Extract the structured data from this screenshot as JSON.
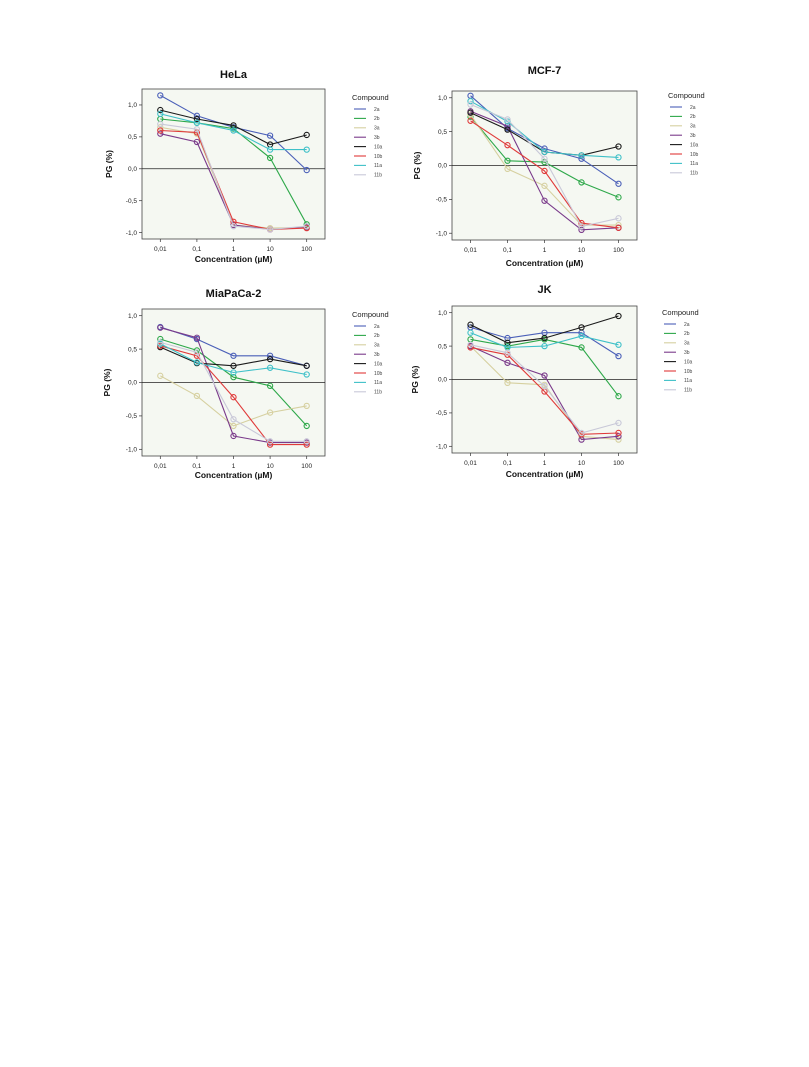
{
  "page": {
    "legend_title": "Compound"
  },
  "chart_data": [
    {
      "type": "line",
      "title": "HeLa",
      "xlabel": "Concentration (µM)",
      "ylabel": "PG (%)",
      "x_scale": "log",
      "categories": [
        "0,01",
        "0,1",
        "1",
        "10",
        "100"
      ],
      "y_ticks": [
        "1,0",
        "0,5",
        "0,0",
        "-0,5",
        "-1,0"
      ],
      "ylim": [
        -1.1,
        1.25
      ],
      "grid": false,
      "legend_position": "right",
      "series": [
        {
          "name": "2a",
          "color": "#4a5fb8",
          "values": [
            1.15,
            0.83,
            0.65,
            0.52,
            -0.02
          ]
        },
        {
          "name": "2b",
          "color": "#2ea84a",
          "values": [
            0.78,
            0.72,
            0.63,
            0.17,
            -0.87
          ]
        },
        {
          "name": "3a",
          "color": "#d6d0a0",
          "values": [
            0.65,
            0.55,
            -0.88,
            -0.93,
            -0.92
          ]
        },
        {
          "name": "3b",
          "color": "#7a3a8a",
          "values": [
            0.55,
            0.42,
            -0.88,
            -0.95,
            -0.92
          ]
        },
        {
          "name": "10a",
          "color": "#1a1a1a",
          "values": [
            0.92,
            0.78,
            0.68,
            0.38,
            0.53
          ]
        },
        {
          "name": "10b",
          "color": "#e03a3a",
          "values": [
            0.6,
            0.57,
            -0.83,
            -0.95,
            -0.93
          ]
        },
        {
          "name": "11a",
          "color": "#3ec0c8",
          "values": [
            0.86,
            0.72,
            0.6,
            0.3,
            0.3
          ]
        },
        {
          "name": "11b",
          "color": "#c8c8d8",
          "values": [
            0.7,
            0.62,
            -0.9,
            -0.95,
            -0.9
          ]
        }
      ]
    },
    {
      "type": "line",
      "title": "MCF-7",
      "xlabel": "Concentration (µM)",
      "ylabel": "PG (%)",
      "x_scale": "log",
      "categories": [
        "0,01",
        "0,1",
        "1",
        "10",
        "100"
      ],
      "y_ticks": [
        "1,0",
        "0,5",
        "0,0",
        "-0,5",
        "-1,0"
      ],
      "ylim": [
        -1.1,
        1.1
      ],
      "grid": false,
      "legend_position": "right",
      "series": [
        {
          "name": "2a",
          "color": "#4a5fb8",
          "values": [
            1.03,
            0.55,
            0.25,
            0.1,
            -0.27
          ]
        },
        {
          "name": "2b",
          "color": "#2ea84a",
          "values": [
            0.72,
            0.07,
            0.05,
            -0.25,
            -0.47
          ]
        },
        {
          "name": "3a",
          "color": "#d6d0a0",
          "values": [
            0.75,
            -0.05,
            -0.3,
            -0.88,
            -0.88
          ]
        },
        {
          "name": "3b",
          "color": "#7a3a8a",
          "values": [
            0.8,
            0.58,
            -0.52,
            -0.95,
            -0.92
          ]
        },
        {
          "name": "10a",
          "color": "#1a1a1a",
          "values": [
            0.78,
            0.53,
            0.2,
            0.15,
            0.28
          ]
        },
        {
          "name": "10b",
          "color": "#e03a3a",
          "values": [
            0.66,
            0.3,
            -0.08,
            -0.85,
            -0.92
          ]
        },
        {
          "name": "11a",
          "color": "#3ec0c8",
          "values": [
            0.95,
            0.65,
            0.2,
            0.15,
            0.12
          ]
        },
        {
          "name": "11b",
          "color": "#c8c8d8",
          "values": [
            0.9,
            0.68,
            0.1,
            -0.9,
            -0.78
          ]
        }
      ]
    },
    {
      "type": "line",
      "title": "MiaPaCa-2",
      "xlabel": "Concentration (µM)",
      "ylabel": "PG (%)",
      "x_scale": "log",
      "categories": [
        "0,01",
        "0,1",
        "1",
        "10",
        "100"
      ],
      "y_ticks": [
        "1,0",
        "0,5",
        "0,0",
        "-0,5",
        "-1,0"
      ],
      "ylim": [
        -1.1,
        1.1
      ],
      "grid": false,
      "legend_position": "right",
      "series": [
        {
          "name": "2a",
          "color": "#4a5fb8",
          "values": [
            0.83,
            0.65,
            0.4,
            0.4,
            0.25
          ]
        },
        {
          "name": "2b",
          "color": "#2ea84a",
          "values": [
            0.65,
            0.48,
            0.08,
            -0.05,
            -0.65
          ]
        },
        {
          "name": "3a",
          "color": "#d6d0a0",
          "values": [
            0.1,
            -0.2,
            -0.65,
            -0.45,
            -0.35
          ]
        },
        {
          "name": "3b",
          "color": "#7a3a8a",
          "values": [
            0.82,
            0.67,
            -0.8,
            -0.9,
            -0.9
          ]
        },
        {
          "name": "10a",
          "color": "#1a1a1a",
          "values": [
            0.53,
            0.29,
            0.25,
            0.35,
            0.25
          ]
        },
        {
          "name": "10b",
          "color": "#e03a3a",
          "values": [
            0.55,
            0.4,
            -0.22,
            -0.93,
            -0.93
          ]
        },
        {
          "name": "11a",
          "color": "#3ec0c8",
          "values": [
            0.58,
            0.3,
            0.15,
            0.22,
            0.12
          ]
        },
        {
          "name": "11b",
          "color": "#c8c8d8",
          "values": [
            0.6,
            0.45,
            -0.55,
            -0.88,
            -0.88
          ]
        }
      ]
    },
    {
      "type": "line",
      "title": "JK",
      "xlabel": "Concentration (µM)",
      "ylabel": "PG (%)",
      "x_scale": "log",
      "categories": [
        "0,01",
        "0,1",
        "1",
        "10",
        "100"
      ],
      "y_ticks": [
        "1,0",
        "0,5",
        "0,0",
        "-0,5",
        "-1,0"
      ],
      "ylim": [
        -1.1,
        1.1
      ],
      "grid": false,
      "legend_position": "right",
      "series": [
        {
          "name": "2a",
          "color": "#4a5fb8",
          "values": [
            0.78,
            0.62,
            0.7,
            0.7,
            0.35
          ]
        },
        {
          "name": "2b",
          "color": "#2ea84a",
          "values": [
            0.6,
            0.5,
            0.6,
            0.48,
            -0.25
          ]
        },
        {
          "name": "3a",
          "color": "#d6d0a0",
          "values": [
            0.5,
            -0.05,
            -0.08,
            -0.85,
            -0.9
          ]
        },
        {
          "name": "3b",
          "color": "#7a3a8a",
          "values": [
            0.5,
            0.25,
            0.06,
            -0.9,
            -0.85
          ]
        },
        {
          "name": "10a",
          "color": "#1a1a1a",
          "values": [
            0.82,
            0.55,
            0.62,
            0.78,
            0.95
          ]
        },
        {
          "name": "10b",
          "color": "#e03a3a",
          "values": [
            0.48,
            0.37,
            -0.18,
            -0.82,
            -0.8
          ]
        },
        {
          "name": "11a",
          "color": "#3ec0c8",
          "values": [
            0.7,
            0.48,
            0.5,
            0.65,
            0.52
          ]
        },
        {
          "name": "11b",
          "color": "#c8c8d8",
          "values": [
            0.52,
            0.4,
            -0.1,
            -0.8,
            -0.65
          ]
        }
      ]
    }
  ]
}
